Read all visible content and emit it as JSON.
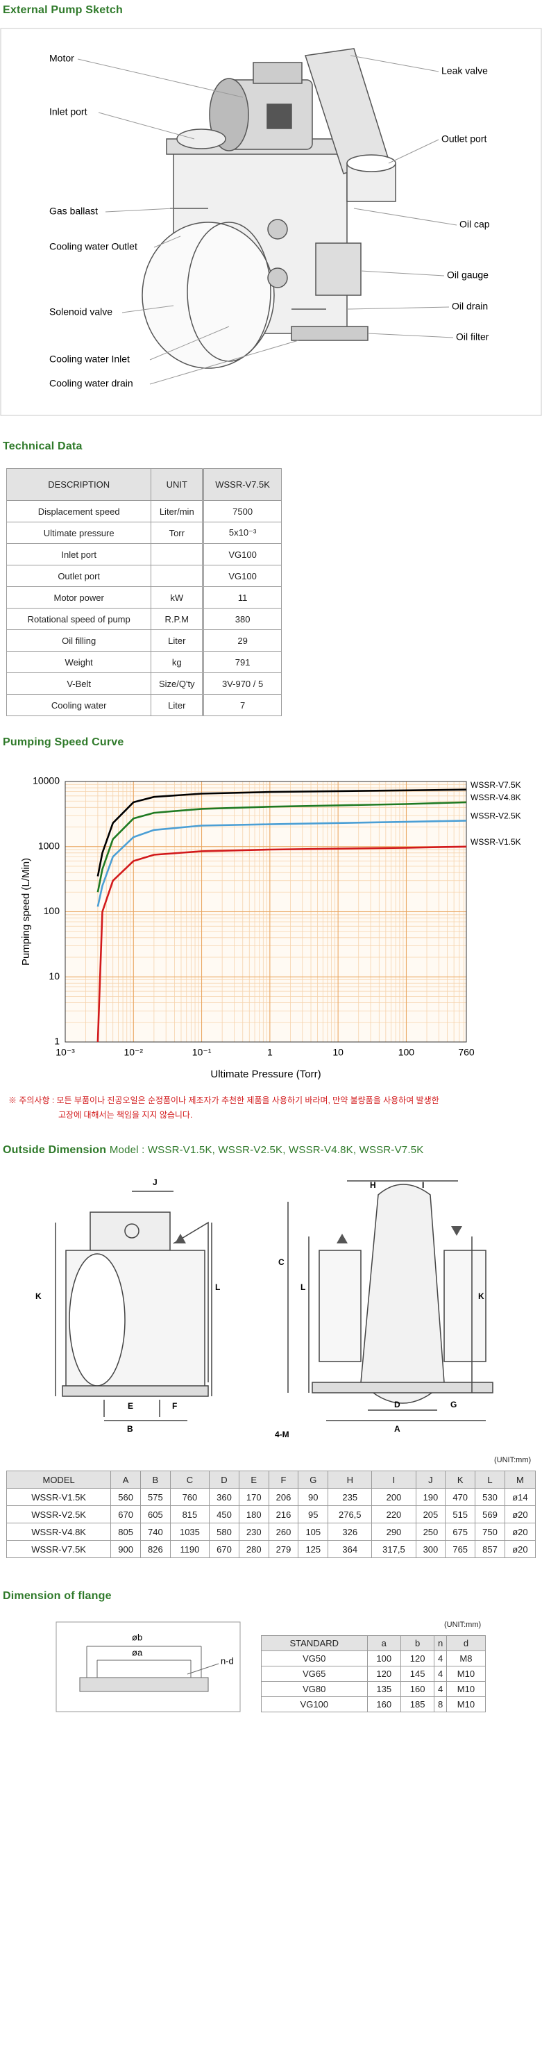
{
  "sketch": {
    "title": "External Pump Sketch",
    "labels": [
      "Motor",
      "Inlet port",
      "Gas ballast",
      "Cooling water Outlet",
      "Solenoid valve",
      "Cooling water Inlet",
      "Cooling water drain",
      "Leak valve",
      "Outlet port",
      "Oil cap",
      "Oil gauge",
      "Oil drain",
      "Oil filter"
    ]
  },
  "technical_data": {
    "title": "Technical Data",
    "header": [
      "DESCRIPTION",
      "UNIT",
      "WSSR-V7.5K"
    ],
    "rows": [
      [
        "Displacement speed",
        "Liter/min",
        "7500"
      ],
      [
        "Ultimate pressure",
        "Torr",
        "5x10⁻³"
      ],
      [
        "Inlet port",
        null,
        "VG100"
      ],
      [
        "Outlet port",
        null,
        "VG100"
      ],
      [
        "Motor power",
        "kW",
        "11"
      ],
      [
        "Rotational speed of pump",
        "R.P.M",
        "380"
      ],
      [
        "Oil filling",
        "Liter",
        "29"
      ],
      [
        "Weight",
        "kg",
        "791"
      ],
      [
        "V-Belt",
        "Size/Q'ty",
        "3V-970 / 5"
      ],
      [
        "Cooling water",
        "Liter",
        "7"
      ]
    ]
  },
  "chart_data": {
    "type": "line",
    "title": "Pumping Speed Curve",
    "x_label": "Ultimate Pressure (Torr)",
    "y_label": "Pumping speed (L/Min)",
    "x": [
      0.003,
      0.0035,
      0.005,
      0.01,
      0.02,
      0.1,
      1,
      10,
      100,
      760
    ],
    "xlim": [
      0.001,
      760
    ],
    "xticks": [
      {
        "value": 0.001,
        "label": "10⁻³"
      },
      {
        "value": 0.01,
        "label": "10⁻²"
      },
      {
        "value": 0.1,
        "label": "10⁻¹"
      },
      1,
      10,
      100,
      760
    ],
    "ylim": [
      1,
      10000
    ],
    "yticks": [
      1,
      10,
      100,
      1000,
      10000
    ],
    "log_x": true,
    "log_y": true,
    "grid": true,
    "series": [
      {
        "name": "WSSR-V7.5K",
        "color": "#000000",
        "values": [
          350,
          800,
          2300,
          4800,
          5800,
          6500,
          6900,
          7100,
          7300,
          7500
        ]
      },
      {
        "name": "WSSR-V4.8K",
        "color": "#1f7a22",
        "values": [
          200,
          450,
          1300,
          2700,
          3300,
          3800,
          4100,
          4300,
          4500,
          4800
        ]
      },
      {
        "name": "WSSR-V2.5K",
        "color": "#4b9fd5",
        "values": [
          120,
          250,
          700,
          1400,
          1800,
          2100,
          2200,
          2300,
          2400,
          2500
        ]
      },
      {
        "name": "WSSR-V1.5K",
        "color": "#d2191b",
        "values": [
          1,
          100,
          300,
          600,
          750,
          850,
          900,
          930,
          960,
          1000
        ]
      }
    ]
  },
  "note": [
    "※ 주의사항 : 모든 부품이나 진공오일은 순정품이나 제조자가 추천한 제품을 사용하기 바라며, 만약 불량품을 사용하여 발생한",
    "고장에 대해서는 책임을 지지 않습니다."
  ],
  "outside_dimension": {
    "title": "Outside Dimension",
    "models": "Model : WSSR-V1.5K, WSSR-V2.5K, WSSR-V4.8K, WSSR-V7.5K",
    "labels": [
      "J",
      "K",
      "L",
      "E",
      "F",
      "B",
      "H",
      "I",
      "C",
      "L",
      "K",
      "D",
      "G",
      "A",
      "4-M"
    ],
    "unit": "(UNIT:mm)",
    "table": {
      "header": [
        "MODEL",
        "A",
        "B",
        "C",
        "D",
        "E",
        "F",
        "G",
        "H",
        "I",
        "J",
        "K",
        "L",
        "M"
      ],
      "rows": [
        [
          "WSSR-V1.5K",
          "560",
          "575",
          "760",
          "360",
          "170",
          "206",
          "90",
          "235",
          "200",
          "190",
          "470",
          "530",
          "ø14"
        ],
        [
          "WSSR-V2.5K",
          "670",
          "605",
          "815",
          "450",
          "180",
          "216",
          "95",
          "276,5",
          "220",
          "205",
          "515",
          "569",
          "ø20"
        ],
        [
          "WSSR-V4.8K",
          "805",
          "740",
          "1035",
          "580",
          "230",
          "260",
          "105",
          "326",
          "290",
          "250",
          "675",
          "750",
          "ø20"
        ],
        [
          "WSSR-V7.5K",
          "900",
          "826",
          "1190",
          "670",
          "280",
          "279",
          "125",
          "364",
          "317,5",
          "300",
          "765",
          "857",
          "ø20"
        ]
      ]
    }
  },
  "flange": {
    "title": "Dimension of flange",
    "labels": [
      "øb",
      "øa",
      "n-d"
    ],
    "unit": "(UNIT:mm)",
    "table": {
      "header": [
        "STANDARD",
        "a",
        "b",
        "n",
        "d"
      ],
      "rows": [
        [
          "VG50",
          "100",
          "120",
          "4",
          "M8"
        ],
        [
          "VG65",
          "120",
          "145",
          "4",
          "M10"
        ],
        [
          "VG80",
          "135",
          "160",
          "4",
          "M10"
        ],
        [
          "VG100",
          "160",
          "185",
          "8",
          "M10"
        ]
      ]
    }
  }
}
